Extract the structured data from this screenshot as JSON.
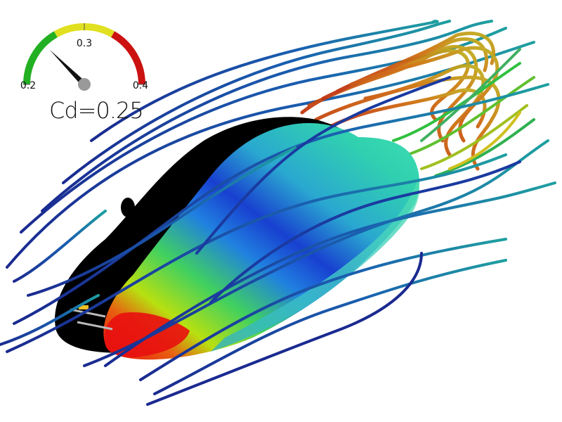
{
  "gauge": {
    "ticks": [
      {
        "label": "0.2",
        "value": 0.2
      },
      {
        "label": "0.3",
        "value": 0.3
      },
      {
        "label": "0.4",
        "value": 0.4
      }
    ],
    "range": [
      0.2,
      0.4
    ],
    "zones": [
      {
        "from": 0.2,
        "to": 0.267,
        "color": "#22b022"
      },
      {
        "from": 0.267,
        "to": 0.333,
        "color": "#e0e020"
      },
      {
        "from": 0.333,
        "to": 0.4,
        "color": "#cc1111"
      }
    ],
    "value": 0.25,
    "readout": "Cd=0.25"
  },
  "scene": {
    "description_icon": "car-streamline-visualization",
    "colors": {
      "slow": "#1a237e",
      "mid": "#1ea0a0",
      "fast": "#e0c020",
      "hot": "#d04010",
      "body_cold": "#2050d0",
      "body_mid": "#28c8a0",
      "body_hot": "#e81010",
      "shadow_side": "#000000"
    }
  }
}
